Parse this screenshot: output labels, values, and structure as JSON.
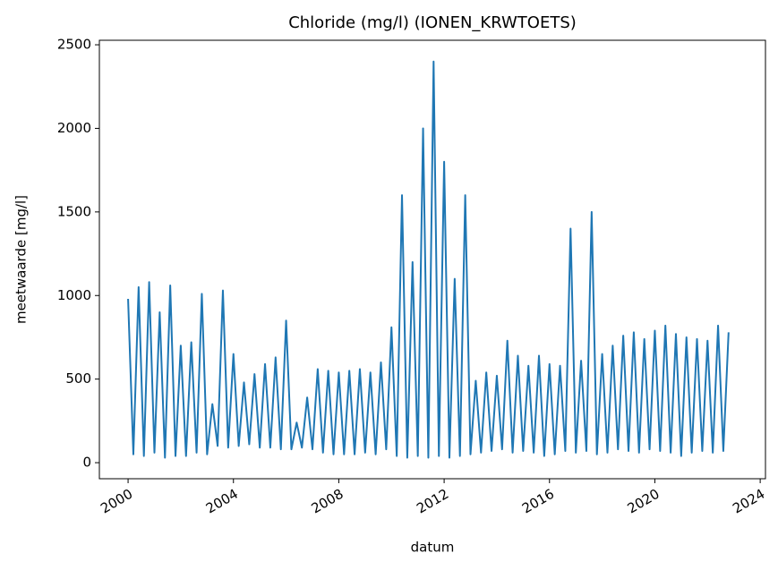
{
  "chart_data": {
    "type": "line",
    "title": "Chloride (mg/l) (IONEN_KRWTOETS)",
    "xlabel": "datum",
    "ylabel": "meetwaarde [mg/l]",
    "color": "#1f77b4",
    "xlim": [
      1998.91,
      2024.2
    ],
    "xticks": [
      2000,
      2004,
      2008,
      2012,
      2016,
      2020,
      2024
    ],
    "ylim": [
      -96,
      2527
    ],
    "yticks": [
      0,
      500,
      1000,
      1500,
      2000,
      2500
    ],
    "x": [
      2000.0,
      2000.2,
      2000.4,
      2000.6,
      2000.8,
      2001.0,
      2001.2,
      2001.4,
      2001.6,
      2001.8,
      2002.0,
      2002.2,
      2002.4,
      2002.6,
      2002.8,
      2003.0,
      2003.2,
      2003.4,
      2003.6,
      2003.8,
      2004.0,
      2004.2,
      2004.4,
      2004.6,
      2004.8,
      2005.0,
      2005.2,
      2005.4,
      2005.6,
      2005.8,
      2006.0,
      2006.2,
      2006.4,
      2006.6,
      2006.8,
      2007.0,
      2007.2,
      2007.4,
      2007.6,
      2007.8,
      2008.0,
      2008.2,
      2008.4,
      2008.6,
      2008.8,
      2009.0,
      2009.2,
      2009.4,
      2009.6,
      2009.8,
      2010.0,
      2010.2,
      2010.4,
      2010.6,
      2010.8,
      2011.0,
      2011.2,
      2011.4,
      2011.6,
      2011.8,
      2012.0,
      2012.2,
      2012.4,
      2012.6,
      2012.8,
      2013.0,
      2013.2,
      2013.4,
      2013.6,
      2013.8,
      2014.0,
      2014.2,
      2014.4,
      2014.6,
      2014.8,
      2015.0,
      2015.2,
      2015.4,
      2015.6,
      2015.8,
      2016.0,
      2016.2,
      2016.4,
      2016.6,
      2016.8,
      2017.0,
      2017.2,
      2017.4,
      2017.6,
      2017.8,
      2018.0,
      2018.2,
      2018.4,
      2018.6,
      2018.8,
      2019.0,
      2019.2,
      2019.4,
      2019.6,
      2019.8,
      2020.0,
      2020.2,
      2020.4,
      2020.6,
      2020.8,
      2021.0,
      2021.2,
      2021.4,
      2021.6,
      2021.8,
      2022.0,
      2022.2,
      2022.4,
      2022.6,
      2022.8
    ],
    "values": [
      980,
      50,
      1050,
      40,
      1080,
      60,
      900,
      30,
      1060,
      40,
      700,
      40,
      720,
      60,
      1010,
      50,
      350,
      100,
      1030,
      90,
      650,
      100,
      480,
      110,
      530,
      90,
      590,
      90,
      630,
      80,
      850,
      80,
      240,
      90,
      390,
      80,
      560,
      60,
      550,
      50,
      540,
      50,
      550,
      50,
      560,
      60,
      540,
      50,
      600,
      80,
      810,
      40,
      1600,
      30,
      1200,
      40,
      2000,
      30,
      2400,
      40,
      1800,
      30,
      1100,
      40,
      1600,
      50,
      490,
      60,
      540,
      70,
      520,
      80,
      730,
      60,
      640,
      70,
      580,
      60,
      640,
      40,
      590,
      50,
      580,
      70,
      1400,
      60,
      610,
      70,
      1500,
      50,
      650,
      60,
      700,
      80,
      760,
      70,
      780,
      60,
      740,
      80,
      790,
      70,
      820,
      60,
      770,
      40,
      750,
      60,
      740,
      70,
      730,
      60,
      820,
      70,
      780
    ]
  }
}
